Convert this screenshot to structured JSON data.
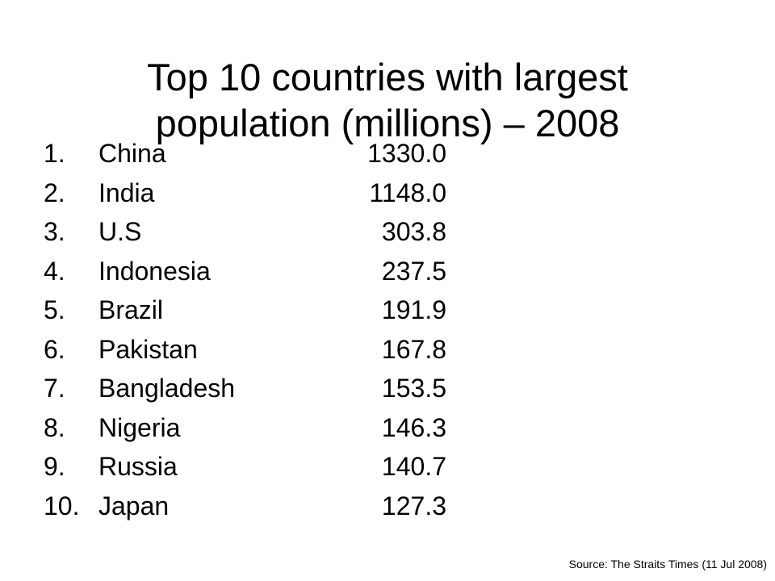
{
  "slide": {
    "title_line1": "Top 10 countries with largest",
    "title_line2": "population (millions) – 2008"
  },
  "rankings": [
    {
      "rank": "1.",
      "country": "China",
      "population": "1330.0"
    },
    {
      "rank": "2.",
      "country": "India",
      "population": "1148.0"
    },
    {
      "rank": "3.",
      "country": "U.S",
      "population": "303.8"
    },
    {
      "rank": "4.",
      "country": "Indonesia",
      "population": "237.5"
    },
    {
      "rank": "5.",
      "country": "Brazil",
      "population": "191.9"
    },
    {
      "rank": "6.",
      "country": "Pakistan",
      "population": "167.8"
    },
    {
      "rank": "7.",
      "country": "Bangladesh",
      "population": "153.5"
    },
    {
      "rank": "8.",
      "country": "Nigeria",
      "population": "146.3"
    },
    {
      "rank": "9.",
      "country": "Russia",
      "population": "140.7"
    },
    {
      "rank": "10.",
      "country": "Japan",
      "population": "127.3"
    }
  ],
  "source": "Source: The Straits Times (11 Jul 2008)"
}
